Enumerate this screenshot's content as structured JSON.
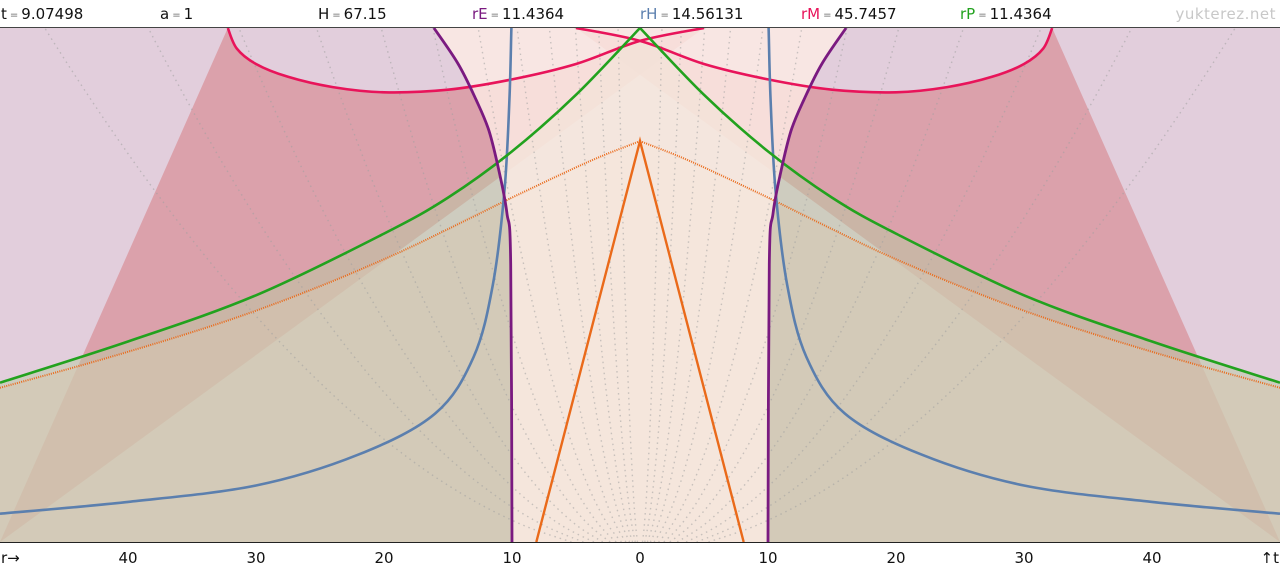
{
  "header": {
    "params": [
      {
        "name": "t",
        "value": "9.07498",
        "color": "#111111"
      },
      {
        "name": "a",
        "value": "1",
        "color": "#111111"
      },
      {
        "name": "H",
        "value": "67.15",
        "color": "#111111"
      },
      {
        "name": "rE",
        "value": "11.4364",
        "color": "#7a1a80"
      },
      {
        "name": "rH",
        "value": "14.56131",
        "color": "#5b7fae"
      },
      {
        "name": "rM",
        "value": "45.7457",
        "color": "#e8145a"
      },
      {
        "name": "rP",
        "value": "11.4364",
        "color": "#22a21e"
      }
    ],
    "eq_sign": "=",
    "brand": "yukterez.net"
  },
  "chart_data": {
    "type": "line",
    "xlabel": "r→",
    "ylabel": "↑t",
    "xlim": [
      -50,
      50
    ],
    "x_tick_labels": [
      "40",
      "30",
      "20",
      "10",
      "0",
      "10",
      "20",
      "30",
      "40"
    ],
    "x_tick_values": [
      -40,
      -30,
      -20,
      -10,
      0,
      10,
      20,
      30,
      40
    ],
    "grid": "dotted",
    "colors": {
      "background": "#e2cedc",
      "event_horizon": "#7a1a80",
      "hubble": "#5b7fae",
      "particle": "#22a21e",
      "mattig": "#e8145a",
      "light_cone": "#ea6a1a"
    },
    "series": [
      {
        "name": "rE",
        "x": [
          -10,
          -10.1,
          -10.4,
          -11.0,
          -11.8,
          -12.8,
          -14.2,
          -16.1
        ],
        "y": [
          0,
          0.54,
          0.64,
          0.72,
          0.8,
          0.86,
          0.93,
          1.0
        ]
      },
      {
        "name": "rH",
        "x": [
          -50,
          -40,
          -30,
          -22,
          -16,
          -13,
          -11.5,
          -10.6,
          -10.2,
          -10.05
        ],
        "y": [
          0.055,
          0.078,
          0.11,
          0.17,
          0.25,
          0.36,
          0.5,
          0.68,
          0.86,
          1.0
        ]
      },
      {
        "name": "rP",
        "x": [
          0,
          -5,
          -10,
          -15,
          -20,
          -30,
          -40,
          -50
        ],
        "y": [
          1.0,
          0.87,
          0.76,
          0.67,
          0.6,
          0.48,
          0.39,
          0.31
        ]
      },
      {
        "name": "rM",
        "x": [
          -32.2,
          -31.5,
          -30,
          -27.5,
          -24,
          -20,
          -15,
          -10,
          -5,
          0,
          5
        ],
        "y": [
          1.0,
          0.96,
          0.93,
          0.905,
          0.885,
          0.875,
          0.88,
          0.9,
          0.93,
          0.975,
          1.0
        ]
      }
    ]
  }
}
